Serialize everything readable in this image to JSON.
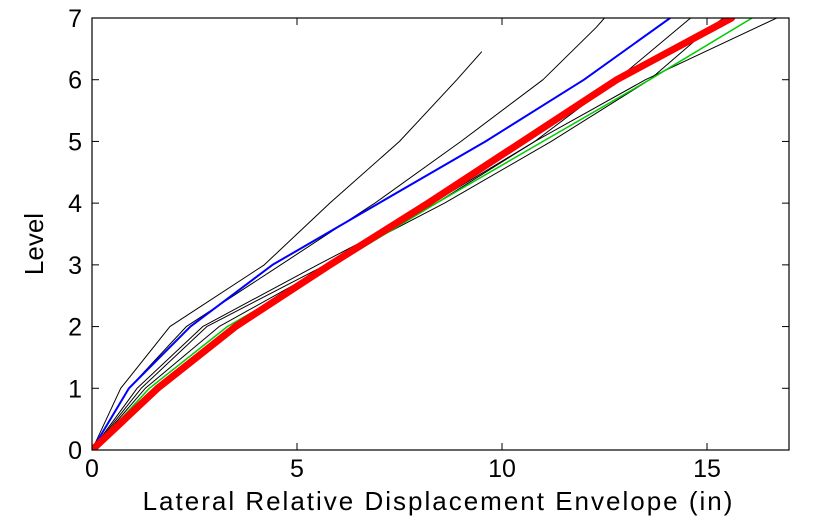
{
  "chart_data": {
    "type": "line",
    "title": "",
    "xlabel": "Lateral Relative Displacement Envelope (in)",
    "ylabel": "Level",
    "xlim": [
      0,
      17
    ],
    "ylim": [
      0,
      7
    ],
    "xticks": [
      0,
      5,
      10,
      15
    ],
    "yticks": [
      0,
      1,
      2,
      3,
      4,
      5,
      6,
      7
    ],
    "grid": false,
    "legend": "none",
    "series": [
      {
        "color": "#000000",
        "width": 1,
        "points": [
          [
            0,
            0
          ],
          [
            0.7,
            1
          ],
          [
            1.9,
            2
          ],
          [
            4.2,
            3
          ],
          [
            5.8,
            4
          ],
          [
            7.5,
            5
          ],
          [
            8.9,
            6
          ],
          [
            9.5,
            6.45
          ]
        ]
      },
      {
        "color": "#000000",
        "width": 1,
        "points": [
          [
            0,
            0
          ],
          [
            0.9,
            1
          ],
          [
            2.3,
            2
          ],
          [
            4.6,
            3
          ],
          [
            6.9,
            4
          ],
          [
            9.0,
            5
          ],
          [
            11.0,
            6
          ],
          [
            12.3,
            6.85
          ],
          [
            12.5,
            7
          ]
        ]
      },
      {
        "color": "#000000",
        "width": 1,
        "points": [
          [
            0,
            0
          ],
          [
            1.1,
            1
          ],
          [
            2.7,
            2
          ],
          [
            5.5,
            3
          ],
          [
            8.4,
            4
          ],
          [
            10.8,
            5
          ],
          [
            12.8,
            6
          ],
          [
            14.6,
            7
          ]
        ]
      },
      {
        "color": "#000000",
        "width": 1,
        "points": [
          [
            0,
            0
          ],
          [
            1.2,
            1
          ],
          [
            2.8,
            2
          ],
          [
            5.7,
            3
          ],
          [
            8.6,
            4
          ],
          [
            11.2,
            5
          ],
          [
            13.6,
            6
          ],
          [
            15.0,
            6.8
          ],
          [
            15.4,
            7
          ]
        ]
      },
      {
        "color": "#000000",
        "width": 1,
        "points": [
          [
            0,
            0
          ],
          [
            1.3,
            1
          ],
          [
            3.1,
            2
          ],
          [
            5.8,
            3
          ],
          [
            8.3,
            4
          ],
          [
            10.8,
            5
          ],
          [
            13.5,
            6
          ],
          [
            16.7,
            7
          ]
        ]
      },
      {
        "color": "#00cc00",
        "width": 1.5,
        "points": [
          [
            0,
            0
          ],
          [
            1.4,
            1
          ],
          [
            3.3,
            2
          ],
          [
            5.9,
            3
          ],
          [
            8.4,
            4
          ],
          [
            11.0,
            5
          ],
          [
            13.6,
            6
          ],
          [
            16.1,
            7
          ]
        ]
      },
      {
        "color": "#0000ff",
        "width": 2,
        "points": [
          [
            0,
            0
          ],
          [
            0.9,
            1
          ],
          [
            2.4,
            2
          ],
          [
            4.4,
            3
          ],
          [
            7.0,
            4
          ],
          [
            9.6,
            5
          ],
          [
            12.0,
            6
          ],
          [
            14.1,
            7
          ]
        ]
      },
      {
        "color": "#ff0000",
        "width": 7,
        "points": [
          [
            0,
            0
          ],
          [
            1.6,
            1
          ],
          [
            3.5,
            2
          ],
          [
            5.8,
            3
          ],
          [
            8.2,
            4
          ],
          [
            10.5,
            5
          ],
          [
            12.8,
            6
          ],
          [
            15.6,
            7
          ]
        ]
      }
    ]
  }
}
